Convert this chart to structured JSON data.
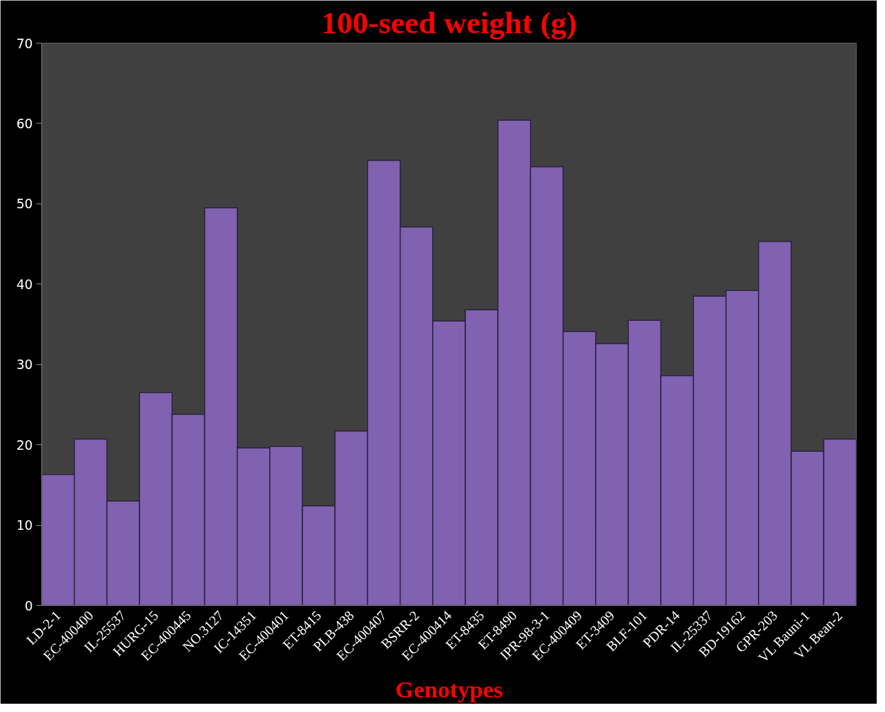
{
  "chart_data": {
    "type": "bar",
    "title": "100-seed weight (g)",
    "xlabel": "Genotypes",
    "categories": [
      "LD-2-1",
      "EC-400400",
      "IL-25537",
      "HURG-15",
      "EC-400445",
      "NO.3127",
      "IC-14351",
      "EC-400401",
      "ET-8415",
      "PLB-438",
      "EC-400407",
      "BSRR-2",
      "EC-400414",
      "ET-8435",
      "ET-8490",
      "IPR-98-3-1",
      "EC-400409",
      "ET-3409",
      "BLF-101",
      "PDR-14",
      "IL-25337",
      "BD-19162",
      "GPR-203",
      "VL Bauni-1",
      "VL Bean-2"
    ],
    "values": [
      16.3,
      20.7,
      13.0,
      26.5,
      23.8,
      49.5,
      19.6,
      19.8,
      12.4,
      21.7,
      55.4,
      47.1,
      35.4,
      36.8,
      60.4,
      54.6,
      34.1,
      32.6,
      35.5,
      28.6,
      38.5,
      39.2,
      45.3,
      19.2,
      20.7
    ],
    "color": "#8062b0",
    "ylim": [
      0,
      70
    ],
    "yticks": [
      0,
      10,
      20,
      30,
      40,
      50,
      60,
      70
    ],
    "grid": false
  }
}
